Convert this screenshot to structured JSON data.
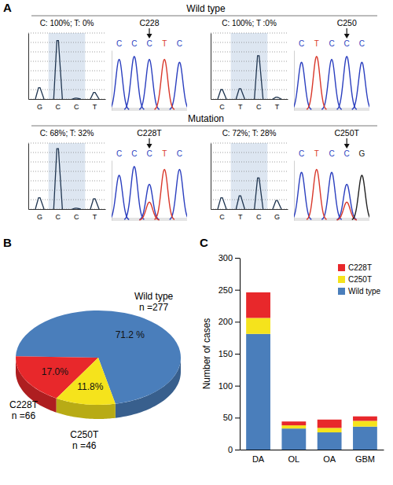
{
  "figure": {
    "panel_labels": [
      "A",
      "B",
      "C"
    ],
    "row_titles": [
      "Wild type",
      "Mutation"
    ]
  },
  "chart_data": [
    {
      "type": "pyrogram",
      "title": "C: 100%; T: 0%",
      "categories": [
        "G",
        "C",
        "C",
        "T"
      ],
      "values": [
        1.2,
        6.2,
        0.1,
        0.7
      ],
      "ylim": [
        0,
        7
      ],
      "yticks": [
        0,
        1,
        2,
        3,
        4,
        5,
        6,
        7
      ],
      "grid": true,
      "tick_labels": "x"
    },
    {
      "type": "chromatogram",
      "categories": [
        "C",
        "C",
        "C",
        "T",
        "C"
      ],
      "series": [
        {
          "name": "C",
          "color": "#2b3fbf",
          "values": [
            0.85,
            0.9,
            0.85,
            null,
            0.8
          ]
        },
        {
          "name": "T",
          "color": "#d9382b",
          "values": [
            null,
            null,
            null,
            0.85,
            null
          ]
        }
      ],
      "ylim": [
        0,
        1
      ],
      "annotations": [
        {
          "text": "C228",
          "x": 2
        }
      ]
    },
    {
      "type": "pyrogram",
      "title": "C: 100%; T :0%",
      "categories": [
        "C",
        "T",
        "C",
        "T"
      ],
      "values": [
        1.0,
        1.1,
        4.6,
        0.2
      ],
      "ylim": [
        0,
        7
      ],
      "yticks": [
        0,
        1,
        2,
        3,
        4,
        5,
        6,
        7
      ],
      "grid": true,
      "tick_labels": "x"
    },
    {
      "type": "chromatogram",
      "categories": [
        "C",
        "T",
        "C",
        "C",
        "C"
      ],
      "series": [
        {
          "name": "C",
          "color": "#2b3fbf",
          "values": [
            0.8,
            null,
            0.85,
            0.9,
            0.8
          ]
        },
        {
          "name": "T",
          "color": "#d9382b",
          "values": [
            null,
            0.9,
            null,
            null,
            null
          ]
        }
      ],
      "ylim": [
        0,
        1
      ],
      "annotations": [
        {
          "text": "C250",
          "x": 3
        }
      ]
    },
    {
      "type": "pyrogram",
      "title": "C: 68%; T: 32%",
      "categories": [
        "G",
        "C",
        "C",
        "T"
      ],
      "values": [
        1.2,
        6.4,
        0.1,
        1.1
      ],
      "ylim": [
        0,
        7
      ],
      "yticks": [
        0,
        1,
        2,
        3,
        4,
        5,
        6,
        7
      ],
      "grid": true,
      "tick_labels": "x"
    },
    {
      "type": "chromatogram",
      "categories": [
        "C",
        "C",
        "C",
        "T",
        "C"
      ],
      "series": [
        {
          "name": "C",
          "color": "#2b3fbf",
          "values": [
            0.75,
            0.9,
            0.6,
            null,
            0.85
          ]
        },
        {
          "name": "T",
          "color": "#d9382b",
          "values": [
            null,
            null,
            0.3,
            0.85,
            null
          ]
        }
      ],
      "ylim": [
        0,
        1
      ],
      "annotations": [
        {
          "text": "C228T",
          "x": 2
        }
      ]
    },
    {
      "type": "pyrogram",
      "title": "C: 72%; T: 28%",
      "categories": [
        "C",
        "T",
        "C",
        "G"
      ],
      "values": [
        1.2,
        1.4,
        3.3,
        0.9
      ],
      "ylim": [
        0,
        7
      ],
      "yticks": [
        0,
        1,
        2,
        3,
        4,
        5,
        6,
        7
      ],
      "grid": true,
      "tick_labels": "x"
    },
    {
      "type": "chromatogram",
      "categories": [
        "C",
        "T",
        "C",
        "C",
        "G"
      ],
      "series": [
        {
          "name": "C",
          "color": "#2b3fbf",
          "values": [
            0.8,
            null,
            0.8,
            0.6,
            null
          ]
        },
        {
          "name": "T",
          "color": "#d9382b",
          "values": [
            null,
            0.85,
            null,
            0.3,
            null
          ]
        },
        {
          "name": "G",
          "color": "#222222",
          "values": [
            null,
            null,
            null,
            null,
            0.75
          ]
        }
      ],
      "ylim": [
        0,
        1
      ],
      "annotations": [
        {
          "text": "C250T",
          "x": 3
        }
      ]
    },
    {
      "type": "pie",
      "categories": [
        "Wild type",
        "C228T",
        "C250T"
      ],
      "values": [
        71.2,
        17.0,
        11.8
      ],
      "value_labels": [
        "71.2 %",
        "17.0%",
        "11.8%"
      ],
      "count_labels": [
        "n =277",
        "n =66",
        "n =46"
      ],
      "colors": [
        "#4a7ebb",
        "#e8282b",
        "#f5e31c"
      ]
    },
    {
      "type": "bar",
      "stacked": true,
      "categories": [
        "DA",
        "OL",
        "OA",
        "GBM"
      ],
      "series": [
        {
          "name": "Wild type",
          "color": "#4a7ebb",
          "values": [
            181,
            33,
            27,
            36
          ]
        },
        {
          "name": "C250T",
          "color": "#f5e31c",
          "values": [
            25,
            5,
            7,
            9
          ]
        },
        {
          "name": "C228T",
          "color": "#e8282b",
          "values": [
            40,
            6,
            13,
            7
          ]
        }
      ],
      "ylim": [
        0,
        300
      ],
      "yticks": [
        0,
        50,
        100,
        150,
        200,
        250,
        300
      ],
      "y_label": "Number of cases",
      "legend": "top-right"
    }
  ]
}
